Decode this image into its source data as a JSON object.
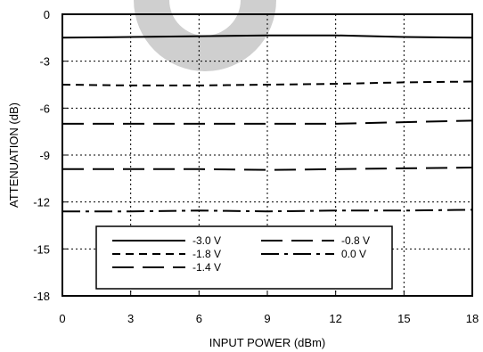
{
  "chart_data": {
    "type": "line",
    "xlabel": "INPUT POWER (dBm)",
    "ylabel": "ATTENUATION (dB)",
    "xlim": [
      0,
      18
    ],
    "ylim": [
      -18,
      0
    ],
    "x_ticks": [
      "0",
      "3",
      "6",
      "9",
      "12",
      "15",
      "18"
    ],
    "y_ticks": [
      "0",
      "-3",
      "-6",
      "-9",
      "-12",
      "-15",
      "-18"
    ],
    "grid": "dotted",
    "legend_position": "bottom-left",
    "series": [
      {
        "name": "-3.0 V",
        "dash": "solid",
        "x": [
          0,
          3,
          6,
          9,
          12,
          15,
          18
        ],
        "y": [
          -1.5,
          -1.45,
          -1.4,
          -1.35,
          -1.35,
          -1.45,
          -1.5
        ]
      },
      {
        "name": "-1.8 V",
        "dash": "short-dash",
        "x": [
          0,
          3,
          6,
          9,
          12,
          15,
          18
        ],
        "y": [
          -4.5,
          -4.55,
          -4.55,
          -4.5,
          -4.45,
          -4.35,
          -4.3
        ]
      },
      {
        "name": "-1.4 V",
        "dash": "long-dash",
        "x": [
          0,
          3,
          6,
          9,
          12,
          15,
          18
        ],
        "y": [
          -7.0,
          -7.0,
          -7.0,
          -7.0,
          -7.0,
          -6.9,
          -6.8
        ]
      },
      {
        "name": "-0.8 V",
        "dash": "long-dash",
        "x": [
          0,
          3,
          6,
          9,
          12,
          15,
          18
        ],
        "y": [
          -9.9,
          -9.9,
          -9.9,
          -9.95,
          -9.9,
          -9.85,
          -9.8
        ]
      },
      {
        "name": "0.0 V",
        "dash": "dash-dot",
        "x": [
          0,
          3,
          6,
          9,
          12,
          15,
          18
        ],
        "y": [
          -12.6,
          -12.6,
          -12.55,
          -12.6,
          -12.55,
          -12.55,
          -12.5
        ]
      }
    ]
  }
}
